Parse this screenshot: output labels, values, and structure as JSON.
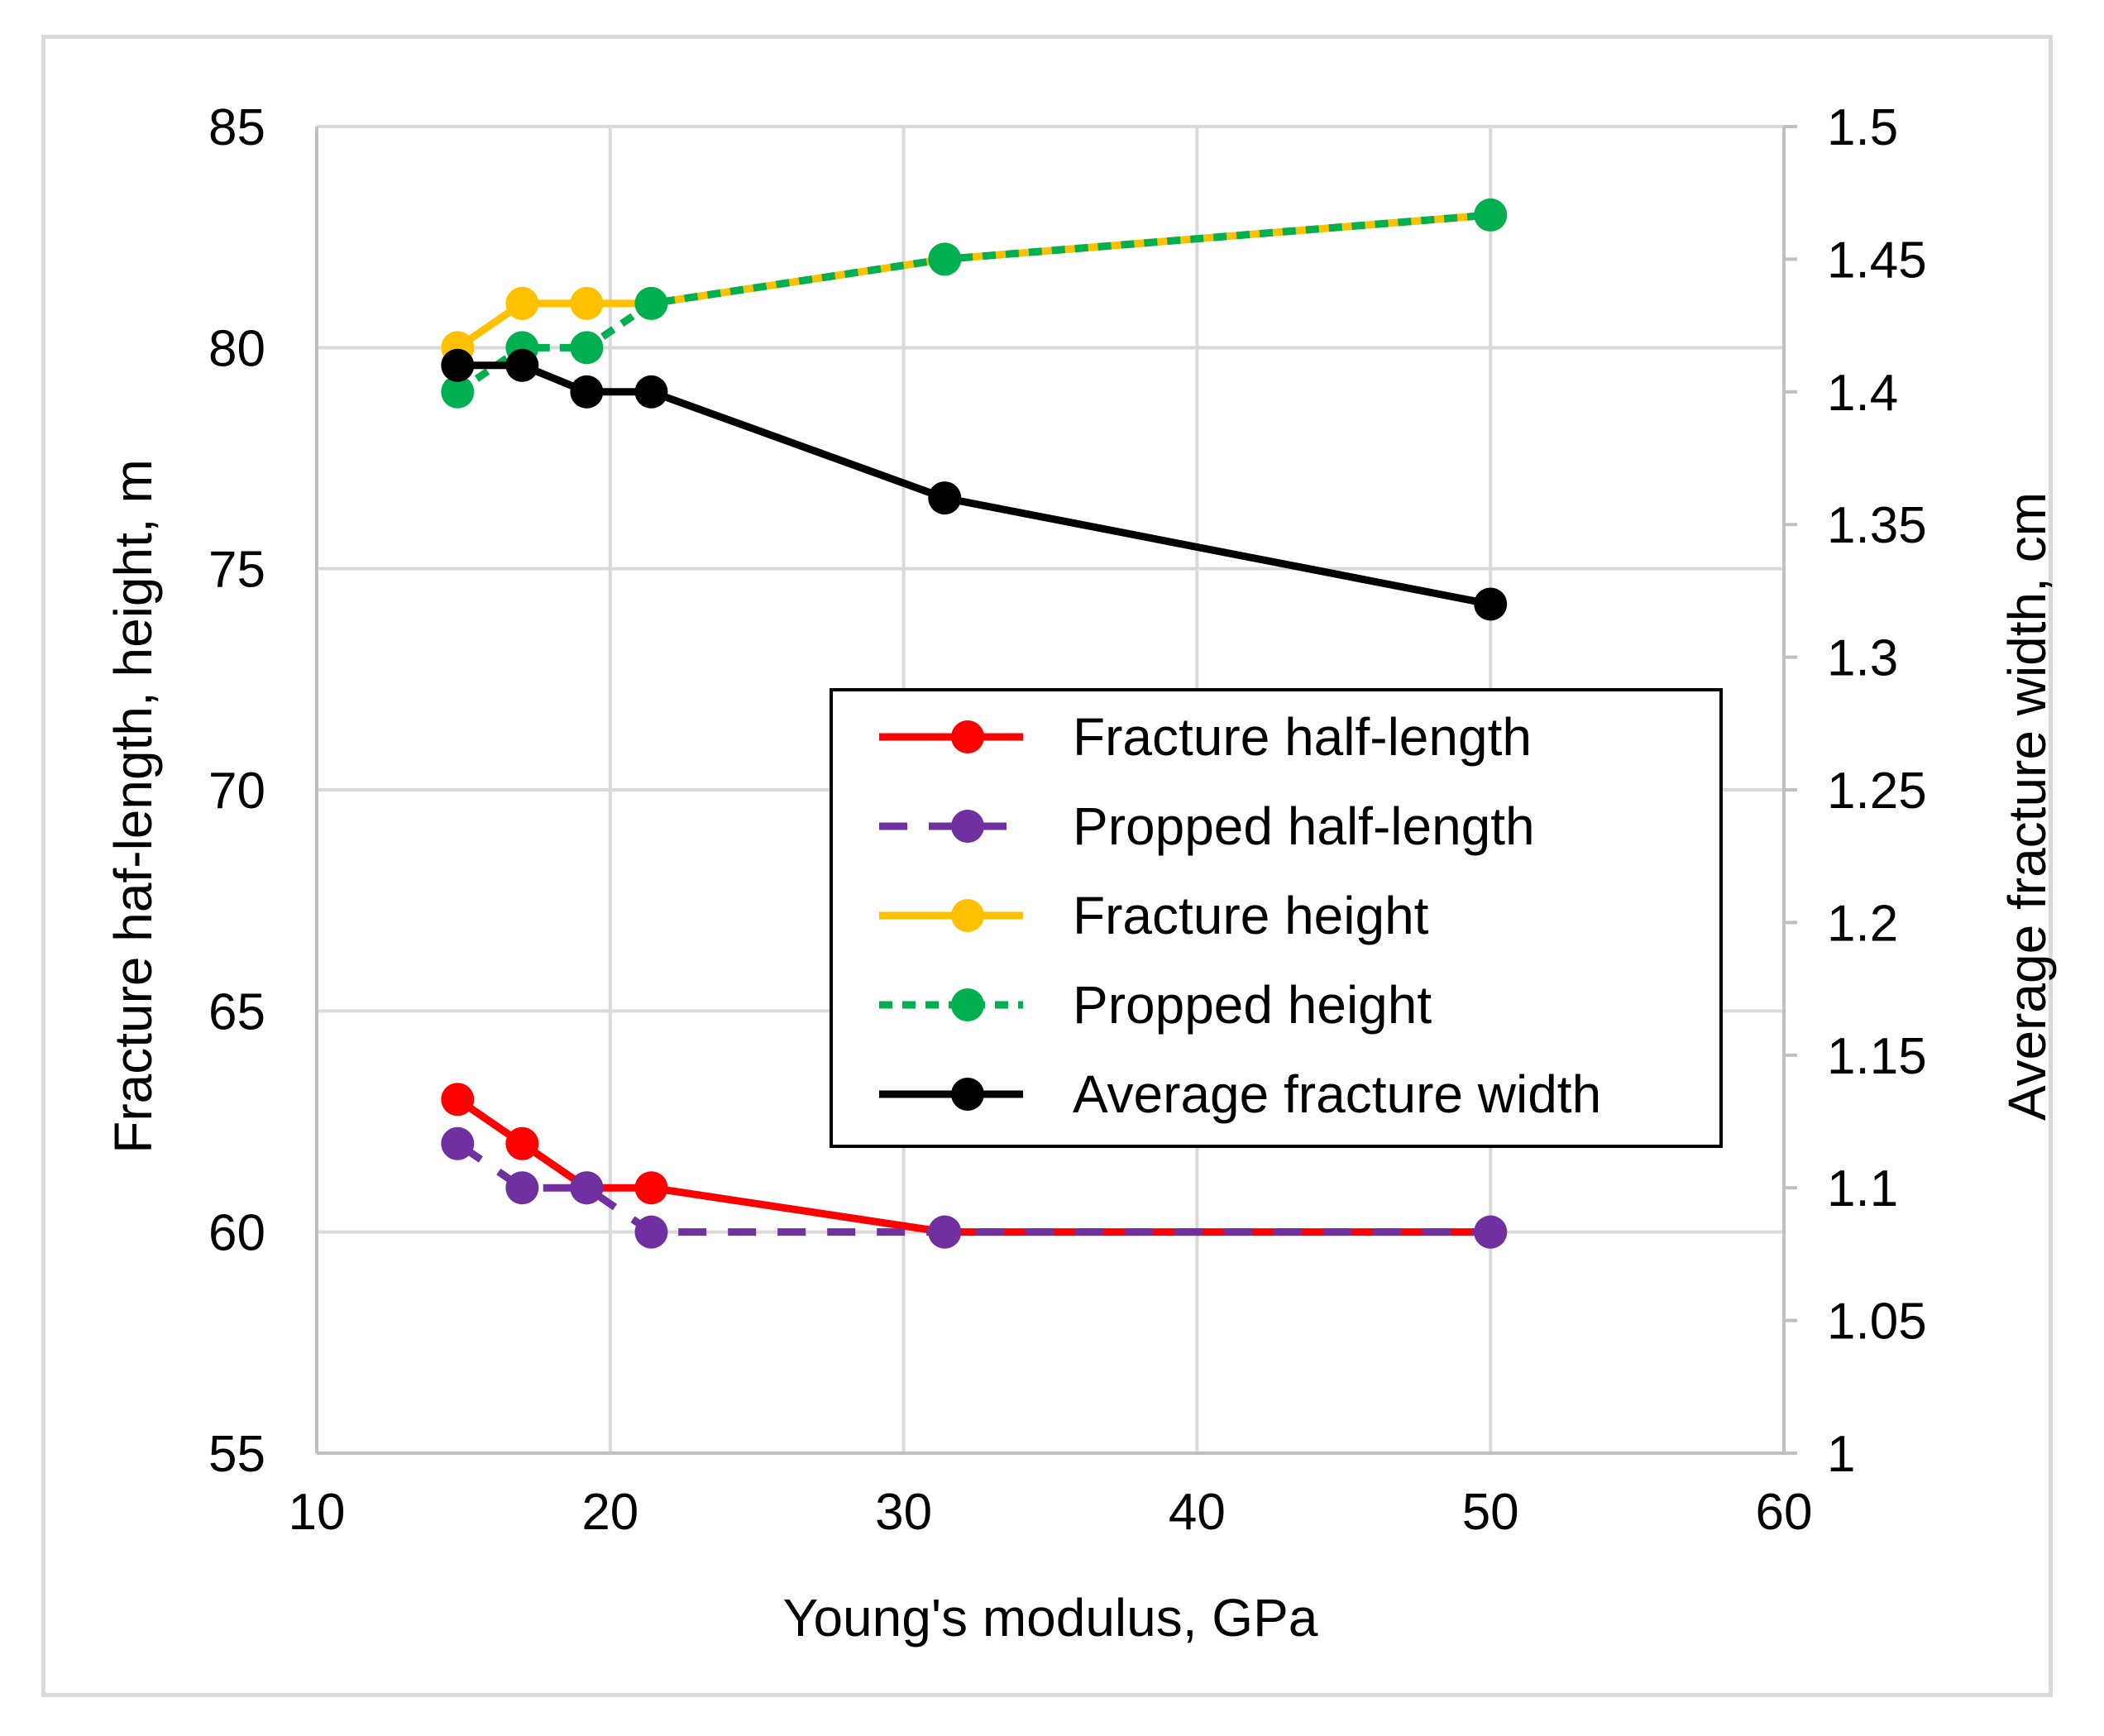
{
  "chart_data": {
    "type": "line",
    "title": "",
    "xlabel": "Young's modulus, GPa",
    "ylabel": "Fracture haf-length, height, m",
    "y2label": "Average fracture width, cm",
    "xlim": [
      10,
      60
    ],
    "ylim": [
      55,
      85
    ],
    "y2lim": [
      1,
      1.5
    ],
    "xticks": [
      "10",
      "20",
      "30",
      "40",
      "50",
      "60"
    ],
    "yticks": [
      "55",
      "60",
      "65",
      "70",
      "75",
      "80",
      "85"
    ],
    "y2ticks": [
      "1",
      "1.05",
      "1.1",
      "1.15",
      "1.2",
      "1.25",
      "1.3",
      "1.35",
      "1.4",
      "1.45",
      "1.5"
    ],
    "grid": true,
    "legend_position": "center-right",
    "series": [
      {
        "name": "Fracture half-length",
        "axis": "left",
        "color": "#ff0000",
        "dash": "solid",
        "x": [
          14.8,
          17.0,
          19.2,
          21.4,
          31.4,
          50.0
        ],
        "y": [
          63,
          62,
          61,
          61,
          60,
          60
        ]
      },
      {
        "name": "Propped half-length",
        "axis": "left",
        "color": "#7030a0",
        "dash": "dash",
        "x": [
          14.8,
          17.0,
          19.2,
          21.4,
          31.4,
          50.0
        ],
        "y": [
          62,
          61,
          61,
          60,
          60,
          60
        ]
      },
      {
        "name": "Fracture height",
        "axis": "left",
        "color": "#ffc000",
        "dash": "solid",
        "x": [
          14.8,
          17.0,
          19.2,
          21.4,
          31.4,
          50.0
        ],
        "y": [
          80,
          81,
          81,
          81,
          82,
          83
        ]
      },
      {
        "name": "Propped height",
        "axis": "left",
        "color": "#00b050",
        "dash": "dot",
        "x": [
          14.8,
          17.0,
          19.2,
          21.4,
          31.4,
          50.0
        ],
        "y": [
          79,
          80,
          80,
          81,
          82,
          83
        ]
      },
      {
        "name": "Average fracture width",
        "axis": "right",
        "color": "#000000",
        "dash": "solid",
        "x": [
          14.8,
          17.0,
          19.2,
          21.4,
          31.4,
          50.0
        ],
        "y": [
          1.41,
          1.41,
          1.4,
          1.4,
          1.36,
          1.32
        ]
      }
    ]
  }
}
